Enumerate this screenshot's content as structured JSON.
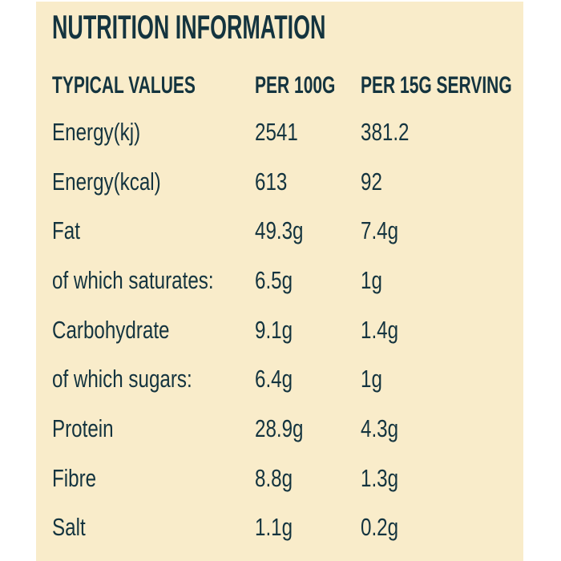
{
  "title": "NUTRITION INFORMATION",
  "table": {
    "headers": [
      "TYPICAL VALUES",
      "PER 100G",
      "PER 15G SERVING"
    ],
    "rows": [
      {
        "label": "Energy(kj)",
        "per_100g": "2541",
        "per_15g_serving": "381.2"
      },
      {
        "label": "Energy(kcal)",
        "per_100g": "613",
        "per_15g_serving": "92"
      },
      {
        "label": "Fat",
        "per_100g": "49.3g",
        "per_15g_serving": "7.4g"
      },
      {
        "label": "of which saturates:",
        "per_100g": "6.5g",
        "per_15g_serving": "1g"
      },
      {
        "label": "Carbohydrate",
        "per_100g": "9.1g",
        "per_15g_serving": "1.4g"
      },
      {
        "label": "of which sugars:",
        "per_100g": "6.4g",
        "per_15g_serving": "1g"
      },
      {
        "label": "Protein",
        "per_100g": "28.9g",
        "per_15g_serving": "4.3g"
      },
      {
        "label": "Fibre",
        "per_100g": "8.8g",
        "per_15g_serving": "1.3g"
      },
      {
        "label": "Salt",
        "per_100g": "1.1g",
        "per_15g_serving": "0.2g"
      }
    ]
  },
  "colors": {
    "panel_background": "#f9ecca",
    "page_background": "#ffffff",
    "text": "#14343f"
  }
}
